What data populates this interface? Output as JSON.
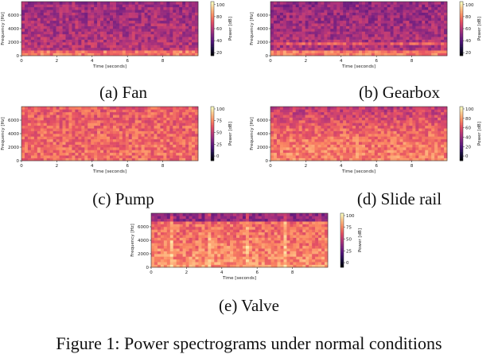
{
  "figure_caption": "Figure 1: Power spectrograms under normal conditions",
  "panels": [
    {
      "caption": "(a) Fan",
      "palette": "fan"
    },
    {
      "caption": "(b) Gearbox",
      "palette": "gearbox"
    },
    {
      "caption": "(c) Pump",
      "palette": "pump"
    },
    {
      "caption": "(d) Slide rail",
      "palette": "slide"
    },
    {
      "caption": "(e) Valve",
      "palette": "valve"
    }
  ],
  "chart_data": [
    {
      "type": "heatmap",
      "id": "fan",
      "xlabel": "Time [seconds]",
      "ylabel": "Frequency [Hz]",
      "xticks": [
        "0",
        "2",
        "4",
        "6",
        "8"
      ],
      "yticks": [
        "0",
        "2000",
        "4000",
        "6000"
      ],
      "colorbar_label": "Power [dB]",
      "colorbar_ticks": [
        "20",
        "40",
        "60",
        "80",
        "100"
      ],
      "xlim": [
        0,
        10
      ],
      "ylim": [
        0,
        8000
      ],
      "clim": [
        15,
        105
      ]
    },
    {
      "type": "heatmap",
      "id": "gearbox",
      "xlabel": "Time [seconds]",
      "ylabel": "Frequency [Hz]",
      "xticks": [
        "0",
        "2",
        "4",
        "6",
        "8"
      ],
      "yticks": [
        "0",
        "2000",
        "4000",
        "6000"
      ],
      "colorbar_label": "Power [dB]",
      "colorbar_ticks": [
        "20",
        "40",
        "60",
        "80",
        "100"
      ],
      "xlim": [
        0,
        10
      ],
      "ylim": [
        0,
        8000
      ],
      "clim": [
        15,
        105
      ]
    },
    {
      "type": "heatmap",
      "id": "pump",
      "xlabel": "Time [seconds]",
      "ylabel": "Frequency [Hz]",
      "xticks": [
        "0",
        "2",
        "4",
        "6",
        "8"
      ],
      "yticks": [
        "0",
        "2000",
        "4000",
        "6000"
      ],
      "colorbar_label": "Power [dB]",
      "colorbar_ticks": [
        "0",
        "25",
        "50",
        "75",
        "100"
      ],
      "xlim": [
        0,
        10
      ],
      "ylim": [
        0,
        8000
      ],
      "clim": [
        -10,
        105
      ]
    },
    {
      "type": "heatmap",
      "id": "slide",
      "xlabel": "Time [seconds]",
      "ylabel": "Frequency [Hz]",
      "xticks": [
        "0",
        "2",
        "4",
        "6",
        "8"
      ],
      "yticks": [
        "0",
        "2000",
        "4000",
        "6000"
      ],
      "colorbar_label": "Power [dB]",
      "colorbar_ticks": [
        "0",
        "20",
        "40",
        "60",
        "80",
        "100"
      ],
      "xlim": [
        0,
        10
      ],
      "ylim": [
        0,
        8000
      ],
      "clim": [
        -10,
        105
      ]
    },
    {
      "type": "heatmap",
      "id": "valve",
      "xlabel": "Time [seconds]",
      "ylabel": "Frequency [Hz]",
      "xticks": [
        "0",
        "2",
        "4",
        "6",
        "8"
      ],
      "yticks": [
        "0",
        "2000",
        "4000",
        "6000"
      ],
      "colorbar_label": "Power [dB]",
      "colorbar_ticks": [
        "0",
        "25",
        "50",
        "75",
        "100"
      ],
      "xlim": [
        0,
        10
      ],
      "ylim": [
        0,
        8000
      ],
      "clim": [
        -10,
        105
      ]
    }
  ]
}
